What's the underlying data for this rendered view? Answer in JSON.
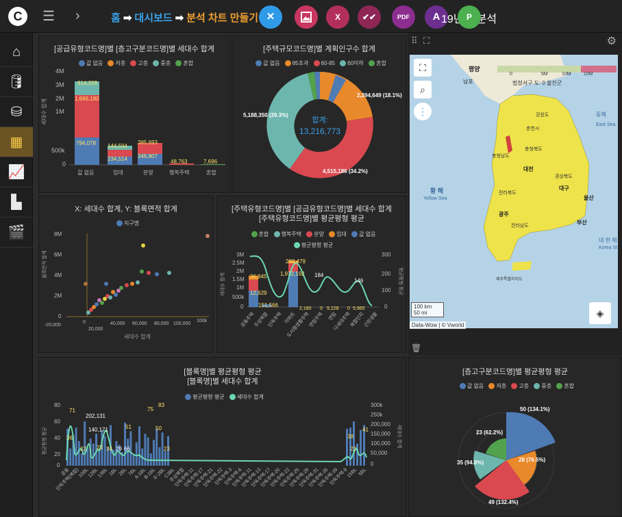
{
  "topbar": {
    "logo": "C",
    "home": "홈",
    "dashboard": "대시보드",
    "current": "분석 차트 만들기",
    "page_title": "19년 출분석",
    "fab_close": "✕",
    "fab_image": "🖼",
    "fab_excel": "X",
    "fab_check": "✔✔",
    "fab_pdf": "PDF",
    "fab_acrobat": "A",
    "fab_file": "P"
  },
  "colors": {
    "c1": "#4f7bb5",
    "c2": "#e8892b",
    "c3": "#d9494f",
    "c4": "#6cb6ad",
    "c5": "#52a14d"
  },
  "chart1": {
    "title": "[공급유형코드명]별 [층고구분코드명]별 세대수 합계",
    "legend": [
      "값 없음",
      "저층",
      "고층",
      "중층",
      "혼합"
    ],
    "ylabel": "세대수 합계",
    "yticks": [
      "4M",
      "3M",
      "2M",
      "1M",
      "500k",
      "0"
    ],
    "categories": [
      "값 없음",
      "임대",
      "분양",
      "행복주택",
      "혼합"
    ],
    "labels": [
      "614,209",
      "1,666,180",
      "794,078",
      "144,594",
      "234,514",
      "385,693",
      "346,807",
      "48,763",
      "7,696"
    ]
  },
  "chart2": {
    "title": "[주택규모코드명]별 계획인구수 합계",
    "legend": [
      "값 없음",
      "85초과",
      "60-85",
      "60이하",
      "혼합"
    ],
    "center_label": "합계:",
    "center_value": "13,216,773",
    "slices": [
      "2,394,649 (18.1%)",
      "4,515,186 (34.2%)",
      "5,188,350 (39.3%)"
    ]
  },
  "chart3": {
    "title": "X: 세대수 합계, Y: 블록면적 합계",
    "legend": [
      "지구명"
    ],
    "ylabel": "블록면적 합계",
    "xlabel": "세대수 합계",
    "yticks": [
      "8M",
      "6M",
      "4M",
      "2M",
      "0"
    ],
    "xticks": [
      "-20,000",
      "0",
      "20,000",
      "40,000",
      "60,000",
      "80,000",
      "100,000",
      "100k"
    ]
  },
  "chart4": {
    "title1": "[주택유형코드명]별 [공급유형코드명]별 세대수 합계",
    "title2": "[주택유형코드명]별 평균평형 평균",
    "legend": [
      "혼합",
      "행복주택",
      "분양",
      "임대",
      "값 없음"
    ],
    "legend2": "평균평형 평균",
    "ylabel": "세대수 합계",
    "y2label": "평균평형 평균",
    "yticks": [
      "3M",
      "2.5M",
      "2M",
      "1.5M",
      "1M",
      "500k",
      "0"
    ],
    "y2ticks": [
      "300",
      "200",
      "100",
      "0"
    ],
    "categories": [
      "공동주택",
      "주상복합",
      "단독주택",
      "아파트",
      "도시형생활주택",
      "연립주택",
      "연립",
      "다세대주택",
      "복합단지",
      "근린생활"
    ],
    "labels": [
      "288,479",
      "36,945",
      "1,972,192",
      "12,629",
      "151,566",
      "184",
      "146",
      "2,160",
      "0",
      "9,228",
      "0",
      "5,965"
    ]
  },
  "chart5": {
    "title1": "[블록명]별 평균평형 평균",
    "title2": "[블록명]별 세대수 합계",
    "legend": [
      "평균평형 평균",
      "세대수 합계"
    ],
    "ylabel": "평균평형 평균",
    "y2label": "세대수 합계",
    "yticks": [
      "80",
      "60",
      "40",
      "20",
      "0"
    ],
    "y2ticks": [
      "300k",
      "250k",
      "200,000",
      "150,000",
      "100,000",
      "50,000",
      "0"
    ],
    "labels": [
      "71",
      "36",
      "22",
      "202,131",
      "140,171",
      "23",
      "34",
      "29",
      "66",
      "51",
      "75",
      "83",
      "50",
      "23",
      "38",
      "22",
      "41"
    ],
    "xcats": [
      "공동",
      "단독주택(복합)",
      "10BL",
      "12BL",
      "13BL",
      "1BL",
      "2BL",
      "7BL",
      "A-1BL",
      "B-1BL",
      "①-2BL",
      "C3BL",
      "주상복합",
      "단독주택-11",
      "단독주택-17",
      "단독주택-21",
      "단독주택-22",
      "단독주택-3",
      "단독주택-6",
      "단독주택-11",
      "단독주택-13",
      "단독주택-17",
      "단독주택-20",
      "단독주택-22",
      "단독주택-25",
      "단독주택-28",
      "단독주택-31",
      "단독주택-35",
      "단독주택-39",
      "단독주택-9",
      "15BL",
      "5BL"
    ]
  },
  "chart6": {
    "title": "[층고구분코드명]별 평균평형 평균",
    "legend": [
      "값 없음",
      "저층",
      "고층",
      "중층",
      "혼합"
    ],
    "slices": [
      "50 (134.1%)",
      "28 (76.5%)",
      "49 (132.4%)",
      "35 (94.8%)",
      "23 (62.2%)"
    ]
  },
  "map": {
    "legend_ticks": [
      "0",
      "5M",
      "10M",
      "10M"
    ],
    "legend_caption": "범정서구 도: 0 울진군",
    "places": [
      "평양",
      "남포",
      "강원도",
      "춘천시",
      "충청북도",
      "충청남도",
      "대전",
      "경상북도",
      "대구",
      "울산",
      "부산",
      "광주",
      "전라남도",
      "전라북도",
      "제주특별자치도",
      "동해",
      "East Sea",
      "황 해",
      "Yellow Sea",
      "대 한 해",
      "Korea St"
    ],
    "scale1": "100 km",
    "scale2": "50 mi",
    "attribution": "Data-Wow | © Vworld"
  }
}
